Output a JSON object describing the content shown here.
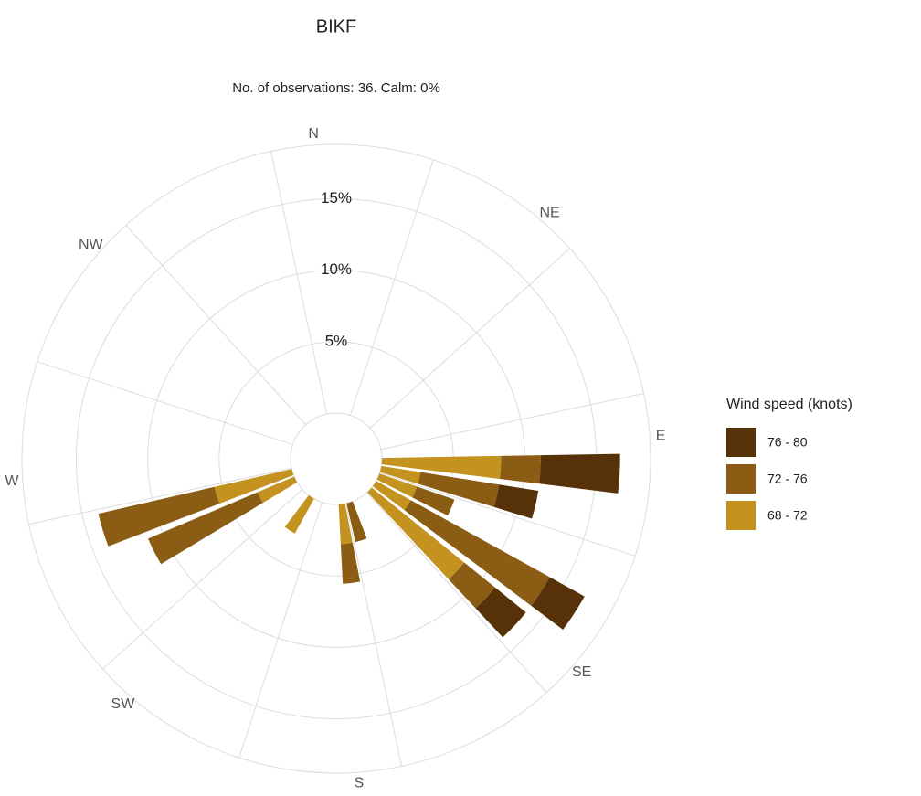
{
  "chart_data": {
    "type": "wind_rose",
    "title": "BIKF",
    "subtitle": "No. of observations: 36. Calm: 0%",
    "direction_labels": [
      "N",
      "NE",
      "E",
      "SE",
      "S",
      "SW",
      "W",
      "NW"
    ],
    "x": [
      90,
      100,
      110,
      120,
      130,
      160,
      170,
      210,
      240,
      250
    ],
    "legend_title": "Wind speed (knots)",
    "series": [
      {
        "name": "76 - 80",
        "color": "#573208",
        "values": [
          5.56,
          2.78,
          0,
          2.78,
          2.78,
          0,
          0,
          0,
          0,
          0
        ]
      },
      {
        "name": "72 - 76",
        "color": "#8b5d14",
        "values": [
          2.78,
          5.56,
          2.78,
          11.11,
          2.78,
          2.78,
          2.78,
          0,
          8.33,
          8.33
        ]
      },
      {
        "name": "68 - 72",
        "color": "#c3921f",
        "values": [
          8.33,
          2.78,
          2.78,
          2.78,
          8.33,
          0,
          2.78,
          2.78,
          2.78,
          5.56
        ]
      }
    ],
    "rlim": [
      0,
      18.8
    ],
    "rticks": [
      {
        "value": 5,
        "label": "5%"
      },
      {
        "value": 10,
        "label": "10%"
      },
      {
        "value": 15,
        "label": "15%"
      }
    ],
    "legend_position": "right"
  }
}
